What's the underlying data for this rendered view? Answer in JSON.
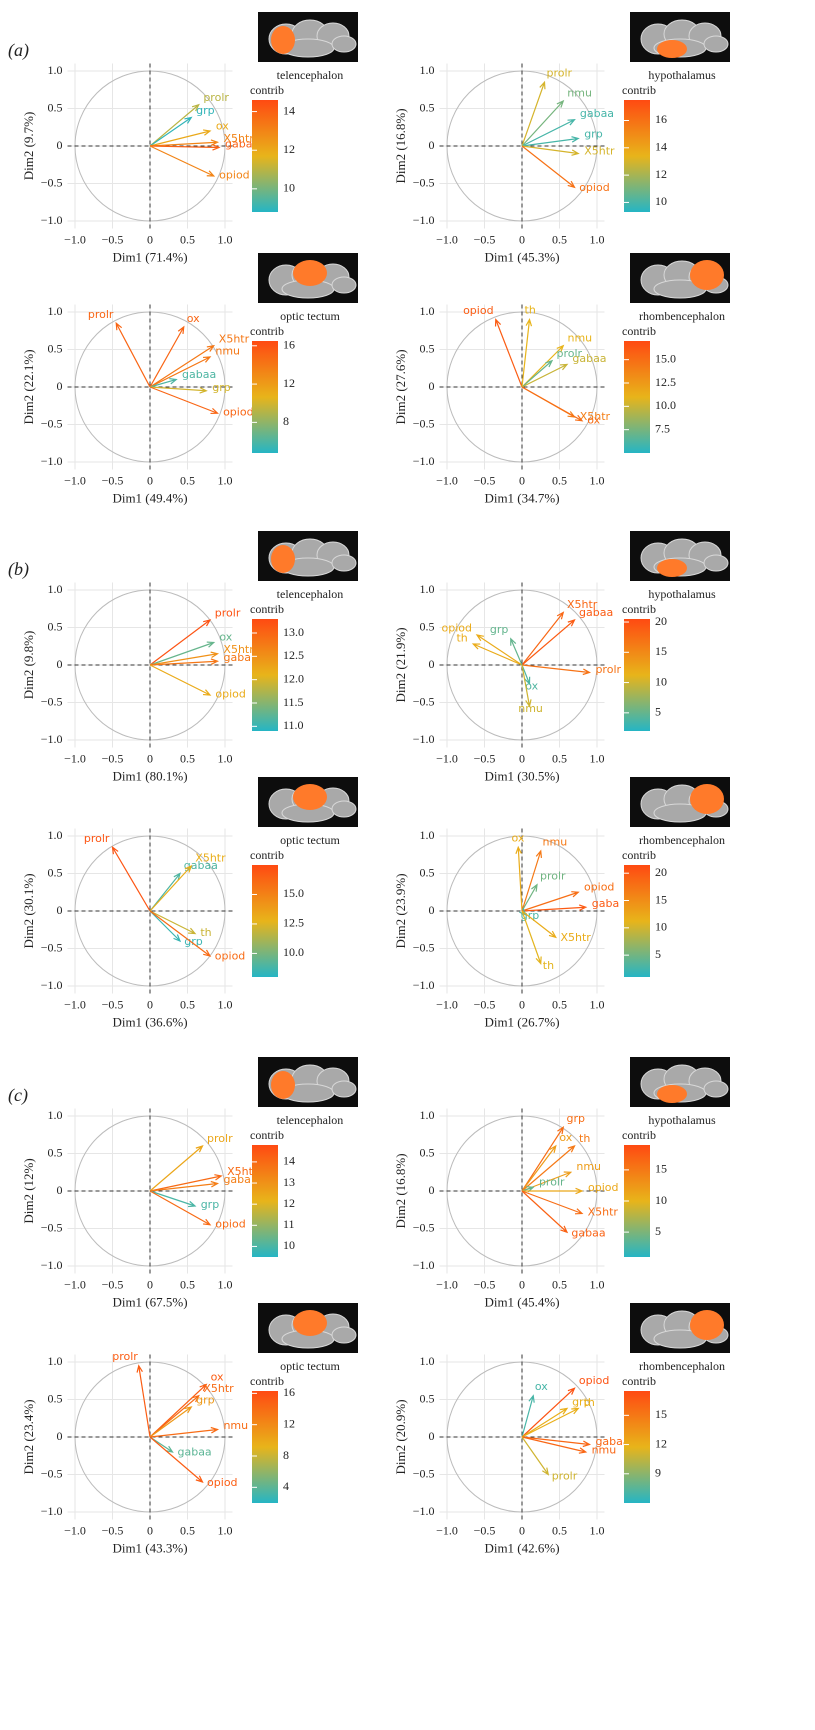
{
  "chart_data": [
    {
      "type": "correlation-circle",
      "panel": "(a)",
      "region": "telencephalon",
      "xlabel": "Dim1 (71.4%)",
      "ylabel": "Dim2 (9.7%)",
      "xlim": [
        -1.1,
        1.1
      ],
      "ylim": [
        -1.1,
        1.1
      ],
      "xticks": [
        {
          "value": -1,
          "label": "−1.0"
        },
        {
          "value": -0.5,
          "label": "−0.5"
        },
        0,
        0.5,
        {
          "value": 1,
          "label": "1.0"
        }
      ],
      "yticks": [
        {
          "value": -1,
          "label": "−1.0"
        },
        {
          "value": -0.5,
          "label": "−0.5"
        },
        0,
        0.5,
        {
          "value": 1,
          "label": "1.0"
        }
      ],
      "variables": [
        "prolr",
        "grp",
        "ox",
        "X5htr",
        "gaba",
        "opiod"
      ],
      "x": [
        0.65,
        0.55,
        0.8,
        0.9,
        0.92,
        0.85
      ],
      "y": [
        0.55,
        0.38,
        0.2,
        0.05,
        -0.02,
        -0.4
      ],
      "contrib": [
        11,
        9,
        12,
        13,
        14,
        13
      ],
      "colorbar": {
        "title": "contrib",
        "clim": [
          8.8,
          14.6
        ],
        "ticks": [
          10,
          12,
          14
        ],
        "colors": [
          "#25b5c5",
          "#e8b41a",
          "#ff4a12"
        ]
      }
    },
    {
      "type": "correlation-circle",
      "region": "hypothalamus",
      "xlabel": "Dim1 (45.3%)",
      "ylabel": "Dim2 (16.8%)",
      "xlim": [
        -1.1,
        1.1
      ],
      "ylim": [
        -1.1,
        1.1
      ],
      "xticks": [
        {
          "value": -1,
          "label": "−1.0"
        },
        {
          "value": -0.5,
          "label": "−0.5"
        },
        0,
        0.5,
        {
          "value": 1,
          "label": "1.0"
        }
      ],
      "yticks": [
        {
          "value": -1,
          "label": "−1.0"
        },
        {
          "value": -0.5,
          "label": "−0.5"
        },
        0,
        0.5,
        {
          "value": 1,
          "label": "1.0"
        }
      ],
      "variables": [
        "prolr",
        "nmu",
        "gabaa",
        "grp",
        "X5htr",
        "opiod"
      ],
      "x": [
        0.3,
        0.55,
        0.7,
        0.75,
        0.75,
        0.7
      ],
      "y": [
        0.85,
        0.6,
        0.35,
        0.1,
        -0.1,
        -0.55
      ],
      "contrib": [
        13,
        11,
        10,
        10,
        13,
        16
      ],
      "colorbar": {
        "title": "contrib",
        "clim": [
          9.3,
          17.5
        ],
        "ticks": [
          10,
          12,
          14,
          16
        ],
        "colors": [
          "#25b5c5",
          "#e8b41a",
          "#ff4a12"
        ]
      }
    },
    {
      "type": "correlation-circle",
      "region": "optic tectum",
      "xlabel": "Dim1 (49.4%)",
      "ylabel": "Dim2 (22.1%)",
      "xlim": [
        -1.1,
        1.1
      ],
      "ylim": [
        -1.1,
        1.1
      ],
      "xticks": [
        {
          "value": -1,
          "label": "−1.0"
        },
        {
          "value": -0.5,
          "label": "−0.5"
        },
        0,
        0.5,
        {
          "value": 1,
          "label": "1.0"
        }
      ],
      "yticks": [
        {
          "value": -1,
          "label": "−1.0"
        },
        {
          "value": -0.5,
          "label": "−0.5"
        },
        0,
        0.5,
        {
          "value": 1,
          "label": "1.0"
        }
      ],
      "variables": [
        "prolr",
        "ox",
        "X5htr",
        "nmu",
        "gabaa",
        "grp",
        "opiod"
      ],
      "x": [
        -0.45,
        0.45,
        0.85,
        0.8,
        0.35,
        0.75,
        0.9
      ],
      "y": [
        0.85,
        0.8,
        0.55,
        0.4,
        0.1,
        -0.05,
        -0.35
      ],
      "contrib": [
        15,
        15,
        14,
        14,
        6,
        10,
        15
      ],
      "colorbar": {
        "title": "contrib",
        "clim": [
          4.8,
          16.5
        ],
        "ticks": [
          8,
          12,
          16
        ],
        "colors": [
          "#25b5c5",
          "#e8b41a",
          "#ff4a12"
        ]
      }
    },
    {
      "type": "correlation-circle",
      "region": "rhombencephalon",
      "xlabel": "Dim1 (34.7%)",
      "ylabel": "Dim2 (27.6%)",
      "xlim": [
        -1.1,
        1.1
      ],
      "ylim": [
        -1.1,
        1.1
      ],
      "xticks": [
        {
          "value": -1,
          "label": "−1.0"
        },
        {
          "value": -0.5,
          "label": "−0.5"
        },
        0,
        0.5,
        {
          "value": 1,
          "label": "1.0"
        }
      ],
      "yticks": [
        {
          "value": -1,
          "label": "−1.0"
        },
        {
          "value": -0.5,
          "label": "−0.5"
        },
        0,
        0.5,
        {
          "value": 1,
          "label": "1.0"
        }
      ],
      "variables": [
        "opiod",
        "th",
        "nmu",
        "prolr",
        "gabaa",
        "X5htr",
        "ox"
      ],
      "x": [
        -0.35,
        0.1,
        0.55,
        0.4,
        0.6,
        0.7,
        0.8
      ],
      "y": [
        0.9,
        0.9,
        0.55,
        0.35,
        0.3,
        -0.4,
        -0.45
      ],
      "contrib": [
        16,
        11,
        11,
        7,
        10,
        14,
        15
      ],
      "colorbar": {
        "title": "contrib",
        "clim": [
          5,
          17
        ],
        "ticks": [
          {
            "value": 7.5,
            "label": "7.5"
          },
          {
            "value": 10,
            "label": "10.0"
          },
          {
            "value": 12.5,
            "label": "12.5"
          },
          {
            "value": 15,
            "label": "15.0"
          }
        ],
        "colors": [
          "#25b5c5",
          "#e8b41a",
          "#ff4a12"
        ]
      }
    },
    {
      "type": "correlation-circle",
      "panel": "(b)",
      "region": "telencephalon",
      "xlabel": "Dim1 (80.1%)",
      "ylabel": "Dim2 (9.8%)",
      "xlim": [
        -1.1,
        1.1
      ],
      "ylim": [
        -1.1,
        1.1
      ],
      "xticks": [
        {
          "value": -1,
          "label": "−1.0"
        },
        {
          "value": -0.5,
          "label": "−0.5"
        },
        0,
        0.5,
        {
          "value": 1,
          "label": "1.0"
        }
      ],
      "yticks": [
        {
          "value": -1,
          "label": "−1.0"
        },
        {
          "value": -0.5,
          "label": "−0.5"
        },
        0,
        0.5,
        {
          "value": 1,
          "label": "1.0"
        }
      ],
      "variables": [
        "prolr",
        "ox",
        "X5htr",
        "gaba",
        "opiod"
      ],
      "x": [
        0.8,
        0.85,
        0.9,
        0.9,
        0.8
      ],
      "y": [
        0.6,
        0.3,
        0.15,
        0.05,
        -0.4
      ],
      "contrib": [
        13.2,
        11.3,
        12.5,
        12.8,
        12.2
      ],
      "colorbar": {
        "title": "contrib",
        "clim": [
          10.9,
          13.3
        ],
        "ticks": [
          {
            "value": 11,
            "label": "11.0"
          },
          11.5,
          {
            "value": 12,
            "label": "12.0"
          },
          12.5,
          {
            "value": 13,
            "label": "13.0"
          }
        ],
        "colors": [
          "#25b5c5",
          "#e8b41a",
          "#ff4a12"
        ]
      }
    },
    {
      "type": "correlation-circle",
      "region": "hypothalamus",
      "xlabel": "Dim1 (30.5%)",
      "ylabel": "Dim2 (21.9%)",
      "xlim": [
        -1.1,
        1.1
      ],
      "ylim": [
        -1.1,
        1.1
      ],
      "xticks": [
        {
          "value": -1,
          "label": "−1.0"
        },
        {
          "value": -0.5,
          "label": "−0.5"
        },
        0,
        0.5,
        {
          "value": 1,
          "label": "1.0"
        }
      ],
      "yticks": [
        {
          "value": -1,
          "label": "−1.0"
        },
        {
          "value": -0.5,
          "label": "−0.5"
        },
        0,
        0.5,
        {
          "value": 1,
          "label": "1.0"
        }
      ],
      "variables": [
        "X5htr",
        "gabaa",
        "opiod",
        "th",
        "grp",
        "prolr",
        "ox",
        "nmu"
      ],
      "x": [
        0.55,
        0.7,
        -0.6,
        -0.65,
        -0.15,
        0.9,
        0.1,
        0.1
      ],
      "y": [
        0.7,
        0.6,
        0.4,
        0.28,
        0.35,
        -0.1,
        -0.25,
        -0.55
      ],
      "contrib": [
        18,
        19,
        12,
        12,
        5,
        17,
        4,
        10
      ],
      "colorbar": {
        "title": "contrib",
        "clim": [
          2,
          20.5
        ],
        "ticks": [
          5,
          10,
          15,
          20
        ],
        "colors": [
          "#25b5c5",
          "#e8b41a",
          "#ff4a12"
        ]
      }
    },
    {
      "type": "correlation-circle",
      "region": "optic tectum",
      "xlabel": "Dim1 (36.6%)",
      "ylabel": "Dim2 (30.1%)",
      "xlim": [
        -1.1,
        1.1
      ],
      "ylim": [
        -1.1,
        1.1
      ],
      "xticks": [
        {
          "value": -1,
          "label": "−1.0"
        },
        {
          "value": -0.5,
          "label": "−0.5"
        },
        0,
        0.5,
        {
          "value": 1,
          "label": "1.0"
        }
      ],
      "yticks": [
        {
          "value": -1,
          "label": "−1.0"
        },
        {
          "value": -0.5,
          "label": "−0.5"
        },
        0,
        0.5,
        {
          "value": 1,
          "label": "1.0"
        }
      ],
      "variables": [
        "prolr",
        "gabaa",
        "X5htr",
        "th",
        "grp",
        "opiod"
      ],
      "x": [
        -0.5,
        0.4,
        0.55,
        0.6,
        0.4,
        0.8
      ],
      "y": [
        0.85,
        0.5,
        0.6,
        -0.3,
        -0.4,
        -0.6
      ],
      "contrib": [
        17,
        9,
        13,
        12,
        8.5,
        16
      ],
      "colorbar": {
        "title": "contrib",
        "clim": [
          8,
          17.5
        ],
        "ticks": [
          {
            "value": 10,
            "label": "10.0"
          },
          12.5,
          {
            "value": 15,
            "label": "15.0"
          }
        ],
        "colors": [
          "#25b5c5",
          "#e8b41a",
          "#ff4a12"
        ]
      }
    },
    {
      "type": "correlation-circle",
      "region": "rhombencephalon",
      "xlabel": "Dim1 (26.7%)",
      "ylabel": "Dim2 (23.9%)",
      "xlim": [
        -1.1,
        1.1
      ],
      "ylim": [
        -1.1,
        1.1
      ],
      "xticks": [
        {
          "value": -1,
          "label": "−1.0"
        },
        {
          "value": -0.5,
          "label": "−0.5"
        },
        0,
        0.5,
        {
          "value": 1,
          "label": "1.0"
        }
      ],
      "yticks": [
        {
          "value": -1,
          "label": "−1.0"
        },
        {
          "value": -0.5,
          "label": "−0.5"
        },
        0,
        0.5,
        {
          "value": 1,
          "label": "1.0"
        }
      ],
      "variables": [
        "ox",
        "nmu",
        "prolr",
        "opiod",
        "gaba",
        "grp",
        "X5htr",
        "th"
      ],
      "x": [
        -0.05,
        0.25,
        0.2,
        0.75,
        0.85,
        0.05,
        0.45,
        0.25
      ],
      "y": [
        0.85,
        0.8,
        0.35,
        0.25,
        0.05,
        -0.05,
        -0.35,
        -0.7
      ],
      "contrib": [
        12,
        17,
        5,
        18,
        20,
        3,
        12,
        11
      ],
      "colorbar": {
        "title": "contrib",
        "clim": [
          1,
          21.5
        ],
        "ticks": [
          5,
          10,
          15,
          20
        ],
        "colors": [
          "#25b5c5",
          "#e8b41a",
          "#ff4a12"
        ]
      }
    },
    {
      "type": "correlation-circle",
      "panel": "(c)",
      "region": "telencephalon",
      "xlabel": "Dim1 (67.5%)",
      "ylabel": "Dim2 (12%)",
      "xlim": [
        -1.1,
        1.1
      ],
      "ylim": [
        -1.1,
        1.1
      ],
      "xticks": [
        {
          "value": -1,
          "label": "−1.0"
        },
        {
          "value": -0.5,
          "label": "−0.5"
        },
        0,
        0.5,
        {
          "value": 1,
          "label": "1.0"
        }
      ],
      "yticks": [
        {
          "value": -1,
          "label": "−1.0"
        },
        {
          "value": -0.5,
          "label": "−0.5"
        },
        0,
        0.5,
        {
          "value": 1,
          "label": "1.0"
        }
      ],
      "variables": [
        "prolr",
        "X5htr",
        "gaba",
        "grp",
        "opiod"
      ],
      "x": [
        0.7,
        0.95,
        0.9,
        0.6,
        0.8
      ],
      "y": [
        0.6,
        0.2,
        0.1,
        -0.2,
        -0.45
      ],
      "contrib": [
        12.5,
        14,
        13.5,
        10,
        14
      ],
      "colorbar": {
        "title": "contrib",
        "clim": [
          9.5,
          14.8
        ],
        "ticks": [
          10,
          11,
          12,
          13,
          14
        ],
        "colors": [
          "#25b5c5",
          "#e8b41a",
          "#ff4a12"
        ]
      }
    },
    {
      "type": "correlation-circle",
      "region": "hypothalamus",
      "xlabel": "Dim1 (45.4%)",
      "ylabel": "Dim2 (16.8%)",
      "xlim": [
        -1.1,
        1.1
      ],
      "ylim": [
        -1.1,
        1.1
      ],
      "xticks": [
        {
          "value": -1,
          "label": "−1.0"
        },
        {
          "value": -0.5,
          "label": "−0.5"
        },
        0,
        0.5,
        {
          "value": 1,
          "label": "1.0"
        }
      ],
      "yticks": [
        {
          "value": -1,
          "label": "−1.0"
        },
        {
          "value": -0.5,
          "label": "−0.5"
        },
        0,
        0.5,
        {
          "value": 1,
          "label": "1.0"
        }
      ],
      "variables": [
        "grp",
        "ox",
        "th",
        "nmu",
        "prolr",
        "opiod",
        "X5htr",
        "gabaa"
      ],
      "x": [
        0.55,
        0.45,
        0.7,
        0.65,
        0.15,
        0.8,
        0.8,
        0.6
      ],
      "y": [
        0.85,
        0.6,
        0.6,
        0.25,
        0.05,
        0,
        -0.3,
        -0.55
      ],
      "contrib": [
        16,
        12,
        15,
        12,
        4,
        11,
        16,
        17
      ],
      "colorbar": {
        "title": "contrib",
        "clim": [
          1,
          19
        ],
        "ticks": [
          5,
          10,
          15
        ],
        "colors": [
          "#25b5c5",
          "#e8b41a",
          "#ff4a12"
        ]
      }
    },
    {
      "type": "correlation-circle",
      "region": "optic tectum",
      "xlabel": "Dim1 (43.3%)",
      "ylabel": "Dim2 (23.4%)",
      "xlim": [
        -1.1,
        1.1
      ],
      "ylim": [
        -1.1,
        1.1
      ],
      "xticks": [
        {
          "value": -1,
          "label": "−1.0"
        },
        {
          "value": -0.5,
          "label": "−0.5"
        },
        0,
        0.5,
        {
          "value": 1,
          "label": "1.0"
        }
      ],
      "yticks": [
        {
          "value": -1,
          "label": "−1.0"
        },
        {
          "value": -0.5,
          "label": "−0.5"
        },
        0,
        0.5,
        {
          "value": 1,
          "label": "1.0"
        }
      ],
      "variables": [
        "prolr",
        "ox",
        "X5htr",
        "grp",
        "nmu",
        "gabaa",
        "opiod"
      ],
      "x": [
        -0.15,
        0.75,
        0.65,
        0.55,
        0.9,
        0.3,
        0.7
      ],
      "y": [
        0.95,
        0.7,
        0.55,
        0.4,
        0.1,
        -0.2,
        -0.6
      ],
      "contrib": [
        15,
        15,
        14,
        11,
        14,
        4,
        15
      ],
      "colorbar": {
        "title": "contrib",
        "clim": [
          2,
          16.3
        ],
        "ticks": [
          4,
          8,
          12,
          16
        ],
        "colors": [
          "#25b5c5",
          "#e8b41a",
          "#ff4a12"
        ]
      }
    },
    {
      "type": "correlation-circle",
      "region": "rhombencephalon",
      "xlabel": "Dim1 (42.6%)",
      "ylabel": "Dim2 (20.9%)",
      "xlim": [
        -1.1,
        1.1
      ],
      "ylim": [
        -1.1,
        1.1
      ],
      "xticks": [
        {
          "value": -1,
          "label": "−1.0"
        },
        {
          "value": -0.5,
          "label": "−0.5"
        },
        0,
        0.5,
        {
          "value": 1,
          "label": "1.0"
        }
      ],
      "yticks": [
        {
          "value": -1,
          "label": "−1.0"
        },
        {
          "value": -0.5,
          "label": "−0.5"
        },
        0,
        0.5,
        {
          "value": 1,
          "label": "1.0"
        }
      ],
      "variables": [
        "ox",
        "opiod",
        "grp",
        "th",
        "gabaa",
        "nmu",
        "prolr"
      ],
      "x": [
        0.15,
        0.7,
        0.6,
        0.75,
        0.9,
        0.85,
        0.35
      ],
      "y": [
        0.55,
        0.65,
        0.38,
        0.38,
        -0.1,
        -0.2,
        -0.5
      ],
      "contrib": [
        7,
        17,
        12,
        12,
        16,
        16,
        11
      ],
      "colorbar": {
        "title": "contrib",
        "clim": [
          6,
          17.5
        ],
        "ticks": [
          9,
          12,
          15
        ],
        "colors": [
          "#25b5c5",
          "#e8b41a",
          "#ff4a12"
        ]
      }
    }
  ]
}
